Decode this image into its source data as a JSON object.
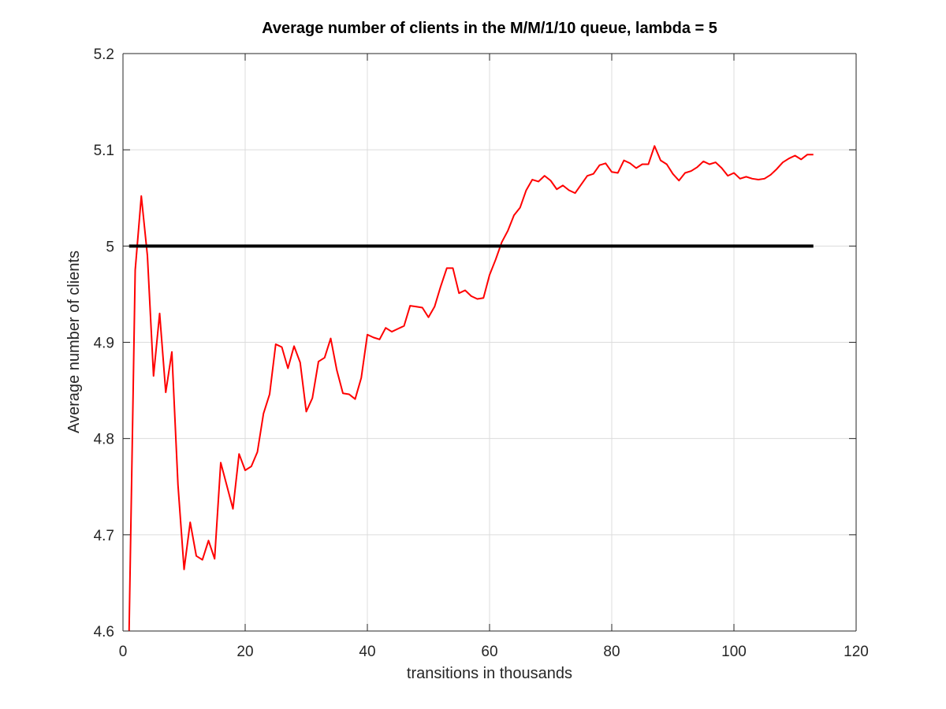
{
  "chart_data": {
    "type": "line",
    "title": "Average number of clients in the M/M/1/10 queue, lambda = 5",
    "xlabel": "transitions in thousands",
    "ylabel": "Average number of clients",
    "xlim": [
      0,
      120
    ],
    "ylim": [
      4.6,
      5.2
    ],
    "xticks": [
      0,
      20,
      40,
      60,
      80,
      100,
      120
    ],
    "yticks": [
      4.6,
      4.7,
      4.8,
      4.9,
      5.0,
      5.1,
      5.2
    ],
    "xtick_labels": [
      "0",
      "20",
      "40",
      "60",
      "80",
      "100",
      "120"
    ],
    "ytick_labels": [
      "4.6",
      "4.7",
      "4.8",
      "4.9",
      "5",
      "5.1",
      "5.2"
    ],
    "grid": true,
    "series": [
      {
        "color": "#ff0000",
        "x": [
          1,
          2,
          3,
          4,
          5,
          6,
          7,
          8,
          9,
          10,
          11,
          12,
          13,
          14,
          15,
          16,
          17,
          18,
          19,
          20,
          21,
          22,
          23,
          24,
          25,
          26,
          27,
          28,
          29,
          30,
          31,
          32,
          33,
          34,
          35,
          36,
          37,
          38,
          39,
          40,
          41,
          42,
          43,
          44,
          45,
          46,
          47,
          48,
          49,
          50,
          51,
          52,
          53,
          54,
          55,
          56,
          57,
          58,
          59,
          60,
          61,
          62,
          63,
          64,
          65,
          66,
          67,
          68,
          69,
          70,
          71,
          72,
          73,
          74,
          75,
          76,
          77,
          78,
          79,
          80,
          81,
          82,
          83,
          84,
          85,
          86,
          87,
          88,
          89,
          90,
          91,
          92,
          93,
          94,
          95,
          96,
          97,
          98,
          99,
          100,
          101,
          102,
          103,
          104,
          105,
          106,
          107,
          108,
          109,
          110,
          111,
          112,
          113
        ],
        "y": [
          4.6,
          4.975,
          5.052,
          4.99,
          4.865,
          4.93,
          4.848,
          4.89,
          4.752,
          4.664,
          4.713,
          4.678,
          4.674,
          4.694,
          4.675,
          4.775,
          4.751,
          4.727,
          4.784,
          4.767,
          4.771,
          4.786,
          4.826,
          4.846,
          4.898,
          4.895,
          4.873,
          4.896,
          4.879,
          4.828,
          4.842,
          4.88,
          4.884,
          4.904,
          4.871,
          4.847,
          4.846,
          4.841,
          4.863,
          4.908,
          4.905,
          4.903,
          4.915,
          4.911,
          4.914,
          4.917,
          4.938,
          4.937,
          4.936,
          4.926,
          4.937,
          4.958,
          4.977,
          4.977,
          4.951,
          4.954,
          4.948,
          4.945,
          4.946,
          4.97,
          4.986,
          5.004,
          5.016,
          5.032,
          5.04,
          5.058,
          5.069,
          5.067,
          5.073,
          5.068,
          5.059,
          5.063,
          5.058,
          5.055,
          5.064,
          5.073,
          5.075,
          5.084,
          5.086,
          5.077,
          5.076,
          5.089,
          5.086,
          5.081,
          5.085,
          5.085,
          5.104,
          5.089,
          5.085,
          5.075,
          5.068,
          5.076,
          5.078,
          5.082,
          5.088,
          5.085,
          5.087,
          5.081,
          5.073,
          5.076,
          5.07,
          5.072,
          5.07,
          5.069,
          5.07,
          5.074,
          5.08,
          5.087,
          5.091,
          5.094,
          5.09,
          5.095,
          5.095
        ]
      },
      {
        "color": "#000000",
        "x": [
          1,
          113
        ],
        "y": [
          5.0,
          5.0
        ]
      }
    ]
  }
}
